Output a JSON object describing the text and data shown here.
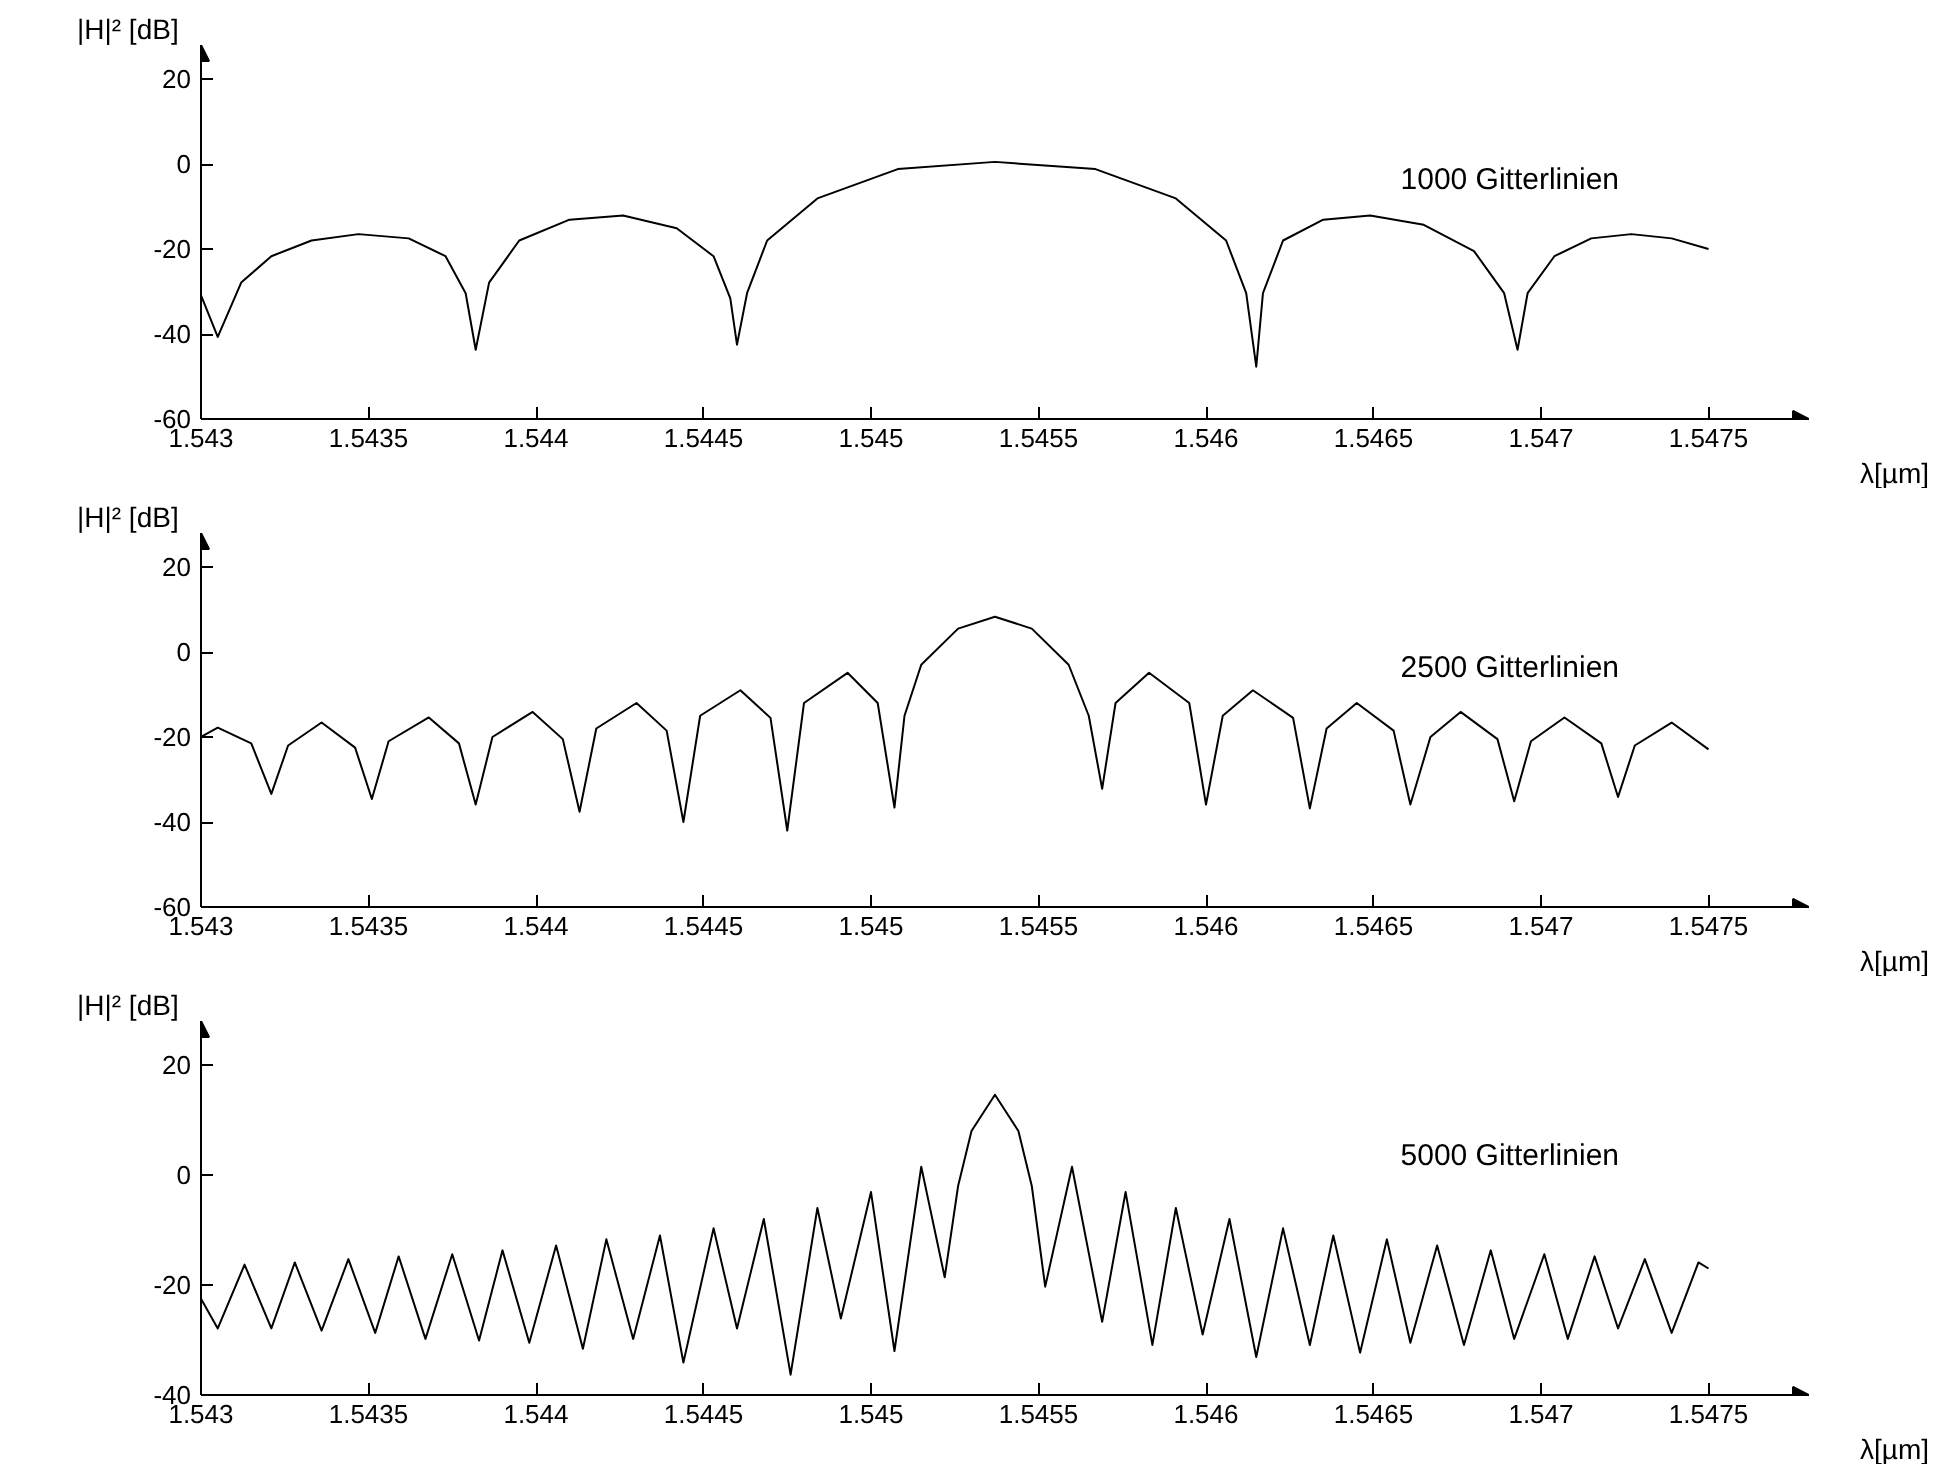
{
  "chart_data": [
    {
      "type": "line",
      "ylabel": "|H|² [dB]",
      "xlabel": "λ[µm]",
      "annotations": [
        "1000 Gitterlinien"
      ],
      "xlim": [
        1.543,
        1.5478
      ],
      "xticks": [
        1.543,
        1.5435,
        1.544,
        1.5445,
        1.545,
        1.5455,
        1.546,
        1.5465,
        1.547,
        1.5475
      ],
      "ylim": [
        -60,
        28
      ],
      "yticks": [
        -60,
        -40,
        -20,
        0,
        20
      ],
      "grid": false,
      "series": [
        {
          "color": "#000000",
          "x": [
            1.543,
            1.54305,
            1.54312,
            1.54321,
            1.54333,
            1.54347,
            1.54362,
            1.54373,
            1.54379,
            1.54382,
            1.54386,
            1.54395,
            1.5441,
            1.54426,
            1.54442,
            1.54453,
            1.54458,
            1.5446,
            1.54463,
            1.54469,
            1.54484,
            1.54508,
            1.54537,
            1.54567,
            1.54591,
            1.54606,
            1.54612,
            1.54615,
            1.54617,
            1.54623,
            1.54635,
            1.54649,
            1.54665,
            1.5468,
            1.54689,
            1.54693,
            1.54696,
            1.54704,
            1.54715,
            1.54727,
            1.54739,
            1.5475
          ],
          "values": [
            -30.9,
            -40.7,
            -27.9,
            -21.7,
            -18.0,
            -16.5,
            -17.5,
            -21.7,
            -30.4,
            -43.7,
            -27.9,
            -18.0,
            -13.1,
            -12.1,
            -15.1,
            -21.7,
            -31.6,
            -42.5,
            -30.4,
            -18.0,
            -8.1,
            -1.2,
            0.5,
            -1.2,
            -8.1,
            -18.0,
            -30.4,
            -47.7,
            -30.4,
            -18.0,
            -13.1,
            -12.1,
            -14.3,
            -20.5,
            -30.4,
            -43.7,
            -30.4,
            -21.7,
            -17.5,
            -16.5,
            -17.5,
            -20.0
          ]
        }
      ]
    },
    {
      "type": "line",
      "ylabel": "|H|² [dB]",
      "xlabel": "λ[µm]",
      "annotations": [
        "2500 Gitterlinien"
      ],
      "xlim": [
        1.543,
        1.5478
      ],
      "xticks": [
        1.543,
        1.5435,
        1.544,
        1.5445,
        1.545,
        1.5455,
        1.546,
        1.5465,
        1.547,
        1.5475
      ],
      "ylim": [
        -60,
        28
      ],
      "yticks": [
        -60,
        -40,
        -20,
        0,
        20
      ],
      "grid": false,
      "series": [
        {
          "color": "#000000",
          "x": [
            1.543,
            1.54305,
            1.54315,
            1.54321,
            1.54326,
            1.54336,
            1.54346,
            1.54351,
            1.54356,
            1.54368,
            1.54377,
            1.54382,
            1.54387,
            1.54399,
            1.54408,
            1.54413,
            1.54418,
            1.5443,
            1.54439,
            1.54444,
            1.54449,
            1.54461,
            1.5447,
            1.54475,
            1.5448,
            1.54493,
            1.54502,
            1.54507,
            1.5451,
            1.54515,
            1.54526,
            1.54537,
            1.54548,
            1.54559,
            1.54565,
            1.54569,
            1.54573,
            1.54583,
            1.54595,
            1.546,
            1.54605,
            1.54614,
            1.54626,
            1.54631,
            1.54636,
            1.54645,
            1.54656,
            1.54661,
            1.54667,
            1.54676,
            1.54687,
            1.54692,
            1.54697,
            1.54707,
            1.54718,
            1.54723,
            1.54728,
            1.54739,
            1.5475
          ],
          "values": [
            -20.0,
            -17.8,
            -21.5,
            -33.4,
            -22.0,
            -16.6,
            -22.5,
            -34.6,
            -21.0,
            -15.4,
            -21.5,
            -35.9,
            -20.0,
            -14.1,
            -20.5,
            -37.6,
            -18.0,
            -12.0,
            -18.5,
            -40.0,
            -15.0,
            -9.0,
            -15.5,
            -42.0,
            -12.0,
            -4.9,
            -12.0,
            -36.6,
            -15.0,
            -3.0,
            5.5,
            8.3,
            5.5,
            -3.0,
            -15.0,
            -32.2,
            -12.0,
            -4.9,
            -12.0,
            -35.9,
            -15.0,
            -9.0,
            -15.5,
            -36.8,
            -18.0,
            -12.0,
            -18.5,
            -35.9,
            -20.0,
            -14.1,
            -20.5,
            -35.1,
            -21.0,
            -15.4,
            -21.5,
            -34.1,
            -22.0,
            -16.6,
            -22.9
          ]
        }
      ]
    },
    {
      "type": "line",
      "ylabel": "|H|² [dB]",
      "xlabel": "λ[µm]",
      "annotations": [
        "5000 Gitterlinien"
      ],
      "xlim": [
        1.543,
        1.5478
      ],
      "xticks": [
        1.543,
        1.5435,
        1.544,
        1.5445,
        1.545,
        1.5455,
        1.546,
        1.5465,
        1.547,
        1.5475
      ],
      "ylim": [
        -40,
        28
      ],
      "yticks": [
        -40,
        -20,
        0,
        20
      ],
      "grid": false,
      "series": [
        {
          "color": "#000000",
          "x": [
            1.543,
            1.54305,
            1.54313,
            1.54321,
            1.54328,
            1.54336,
            1.54344,
            1.54352,
            1.54359,
            1.54367,
            1.54375,
            1.54383,
            1.5439,
            1.54398,
            1.54406,
            1.54414,
            1.54421,
            1.54429,
            1.54437,
            1.54444,
            1.54453,
            1.5446,
            1.54468,
            1.54476,
            1.54484,
            1.54491,
            1.545,
            1.54507,
            1.54515,
            1.54522,
            1.54526,
            1.5453,
            1.54537,
            1.54544,
            1.54548,
            1.54552,
            1.5456,
            1.54569,
            1.54576,
            1.54584,
            1.54591,
            1.54599,
            1.54607,
            1.54615,
            1.54623,
            1.54631,
            1.54638,
            1.54646,
            1.54654,
            1.54661,
            1.54669,
            1.54677,
            1.54685,
            1.54692,
            1.54701,
            1.54708,
            1.54716,
            1.54723,
            1.54731,
            1.54739,
            1.54747,
            1.5475
          ],
          "values": [
            -22.5,
            -27.9,
            -16.3,
            -27.9,
            -15.9,
            -28.3,
            -15.3,
            -28.7,
            -14.8,
            -29.8,
            -14.4,
            -30.1,
            -13.7,
            -30.5,
            -12.8,
            -31.6,
            -11.7,
            -29.8,
            -11.0,
            -34.1,
            -9.7,
            -27.9,
            -8.0,
            -36.3,
            -6.0,
            -26.1,
            -3.1,
            -32.0,
            1.5,
            -18.6,
            -2.0,
            8.0,
            14.6,
            8.0,
            -2.0,
            -20.3,
            1.5,
            -26.7,
            -3.1,
            -30.9,
            -6.0,
            -29.0,
            -8.0,
            -33.1,
            -9.7,
            -30.9,
            -11.0,
            -32.3,
            -11.7,
            -30.5,
            -12.8,
            -30.9,
            -13.7,
            -29.8,
            -14.4,
            -29.8,
            -14.8,
            -27.9,
            -15.3,
            -28.7,
            -15.9,
            -17.0
          ]
        }
      ]
    }
  ]
}
